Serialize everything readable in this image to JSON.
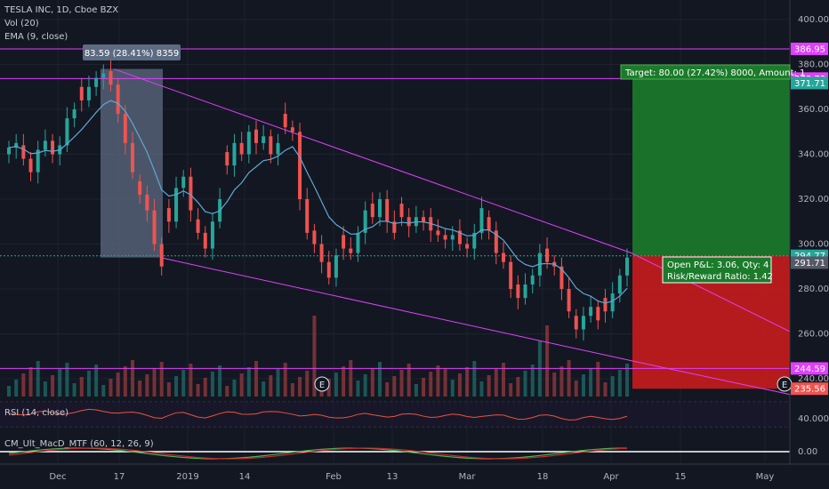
{
  "chart_data": {
    "type": "candlestick",
    "title": "TESLA INC, 1D, Cboe BZX",
    "legend": [
      "Vol (20)",
      "EMA (9, close)"
    ],
    "x_ticks": [
      "Dec",
      "17",
      "2019",
      "14",
      "Feb",
      "13",
      "Mar",
      "18",
      "Apr",
      "15",
      "May"
    ],
    "y_ticks": [
      400.0,
      380.0,
      360.0,
      340.0,
      320.0,
      300.0,
      280.0,
      260.0,
      240.0
    ],
    "ylim": [
      232,
      405
    ],
    "price_labels": [
      {
        "value": 386.95,
        "color": "#e040fb",
        "text": "386.95"
      },
      {
        "value": 373.73,
        "color": "#e040fb",
        "text": "373.73"
      },
      {
        "value": 371.71,
        "color": "#26a69a",
        "text": "371.71"
      },
      {
        "value": 294.77,
        "color": "#26a69a",
        "text": "294.77"
      },
      {
        "value": 291.71,
        "color": "#555a66",
        "text": "291.71"
      },
      {
        "value": 244.59,
        "color": "#e040fb",
        "text": "244.59"
      },
      {
        "value": 235.56,
        "color": "#ef5350",
        "text": "235.56"
      }
    ],
    "measure_label": "83.59 (28.41%) 8359",
    "target_label": "Target: 80.00 (27.42%) 8000, Amount: 1",
    "pnl_label_line1": "Open P&L: 3.06, Qty: 4",
    "pnl_label_line2": "Risk/Reward Ratio: 1.42",
    "earnings_marker": "E",
    "closes": [
      343,
      345,
      338,
      332,
      342,
      346,
      340,
      344,
      356,
      360,
      364,
      370,
      374,
      376,
      371,
      358,
      345,
      332,
      322,
      315,
      300,
      290,
      310,
      325,
      330,
      315,
      305,
      298,
      310,
      320,
      335,
      345,
      340,
      350,
      345,
      348,
      340,
      345,
      352,
      350,
      320,
      305,
      300,
      292,
      285,
      295,
      298,
      296,
      305,
      315,
      312,
      320,
      310,
      305,
      312,
      308,
      312,
      310,
      306,
      304,
      302,
      304,
      300,
      298,
      305,
      316,
      306,
      296,
      292,
      280,
      276,
      282,
      286,
      296,
      292,
      290,
      280,
      270,
      262,
      268,
      272,
      266,
      270,
      278,
      286,
      294
    ],
    "rsi_label": "RSI (14, close)",
    "rsi_ticks": [
      40.0
    ],
    "macd_label": "CM_Ult_MacD_MTF (60, 12, 26, 9)",
    "macd_ticks": [
      0.0
    ],
    "colors": {
      "up": "#26a69a",
      "down": "#ef5350",
      "trend": "#e040fb",
      "ema": "#5fa8d3",
      "bg": "#131722",
      "text": "#b2b5be"
    }
  }
}
